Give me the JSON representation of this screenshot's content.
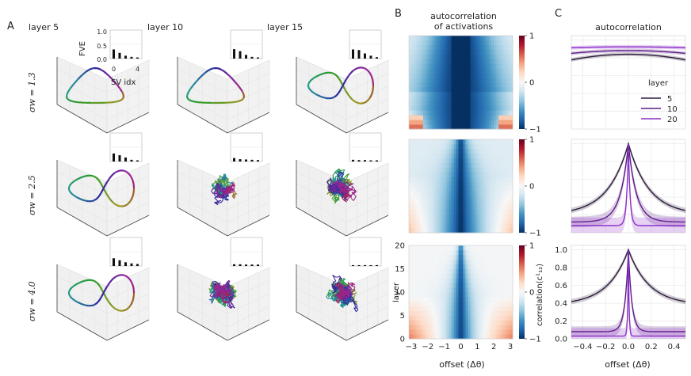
{
  "panel_labels": {
    "a": "A",
    "b": "B",
    "c": "C"
  },
  "panel_a": {
    "column_titles": [
      "layer 5",
      "layer 10",
      "layer 15"
    ],
    "row_labels": [
      "σw = 1.3",
      "σw = 2.5",
      "σw = 4.0"
    ],
    "inset": {
      "ylabel": "FVE",
      "xlabel": "SV idx",
      "yticks": [
        "0.0",
        "0.5",
        "1.0"
      ],
      "xticks": [
        "0",
        "4"
      ]
    }
  },
  "panel_b": {
    "title_line1": "autocorrelation",
    "title_line2": "of activations",
    "xlabel": "offset (Δθ)",
    "ylabel": "layer",
    "colorbar_label": "correlation(c¹₁₂)",
    "colorbar_ticks": [
      "1",
      "0",
      "−1"
    ]
  },
  "panel_c": {
    "title": "autocorrelation",
    "xlabel": "offset (Δθ)",
    "legend_title": "layer",
    "legend_entries": [
      "5",
      "10",
      "20"
    ]
  },
  "chart_data": [
    {
      "type": "bar",
      "title": "",
      "xlabel": "SV idx",
      "ylabel": "FVE",
      "ylim": [
        0,
        1.0
      ],
      "insets": [
        {
          "row": 0,
          "col": 0,
          "values": [
            0.32,
            0.2,
            0.1,
            0.06,
            0.04
          ]
        },
        {
          "row": 0,
          "col": 1,
          "values": [
            0.33,
            0.26,
            0.13,
            0.06,
            0.04
          ]
        },
        {
          "row": 0,
          "col": 2,
          "values": [
            0.32,
            0.3,
            0.18,
            0.1,
            0.05
          ]
        },
        {
          "row": 1,
          "col": 0,
          "values": [
            0.28,
            0.22,
            0.14,
            0.06,
            0.04
          ]
        },
        {
          "row": 1,
          "col": 1,
          "values": [
            0.12,
            0.08,
            0.07,
            0.06,
            0.05
          ]
        },
        {
          "row": 1,
          "col": 2,
          "values": [
            0.06,
            0.05,
            0.05,
            0.04,
            0.04
          ]
        },
        {
          "row": 2,
          "col": 0,
          "values": [
            0.27,
            0.2,
            0.13,
            0.09,
            0.07
          ]
        },
        {
          "row": 2,
          "col": 1,
          "values": [
            0.06,
            0.06,
            0.05,
            0.05,
            0.05
          ]
        },
        {
          "row": 2,
          "col": 2,
          "values": [
            0.03,
            0.03,
            0.03,
            0.03,
            0.03
          ]
        }
      ]
    },
    {
      "type": "heatmap",
      "title": "autocorrelation of activations",
      "xlabel": "offset (Δθ)",
      "ylabel": "layer",
      "x_range": [
        -3.14,
        3.14
      ],
      "xticks": [
        -3,
        -2,
        -1,
        0,
        1,
        2,
        3
      ],
      "y_range": [
        0,
        20
      ],
      "yticks": [
        0,
        5,
        10,
        15,
        20
      ],
      "color_range": [
        -1,
        1
      ],
      "colormap": [
        "#053061",
        "#2166ac",
        "#4393c3",
        "#92c5de",
        "#d1e5f0",
        "#f7f7f7",
        "#fddbc7",
        "#f4a582",
        "#d6604d",
        "#b2182b",
        "#67001f"
      ],
      "panels": [
        {
          "sigma_w": 1.3
        },
        {
          "sigma_w": 2.5
        },
        {
          "sigma_w": 4.0
        }
      ]
    },
    {
      "type": "line",
      "title": "autocorrelation",
      "xlabel": "offset (Δθ)",
      "ylabel": "",
      "xlim": [
        -0.5,
        0.5
      ],
      "xticks": [
        -0.4,
        -0.2,
        0.0,
        0.2,
        0.4
      ],
      "ylim": [
        0.0,
        1.0
      ],
      "yticks": [
        0.0,
        0.2,
        0.4,
        0.6,
        0.8,
        1.0
      ],
      "series": [
        {
          "name": "5",
          "color": "#2d1b3b"
        },
        {
          "name": "10",
          "color": "#5b1d86"
        },
        {
          "name": "20",
          "color": "#8b2fc9"
        }
      ]
    }
  ]
}
